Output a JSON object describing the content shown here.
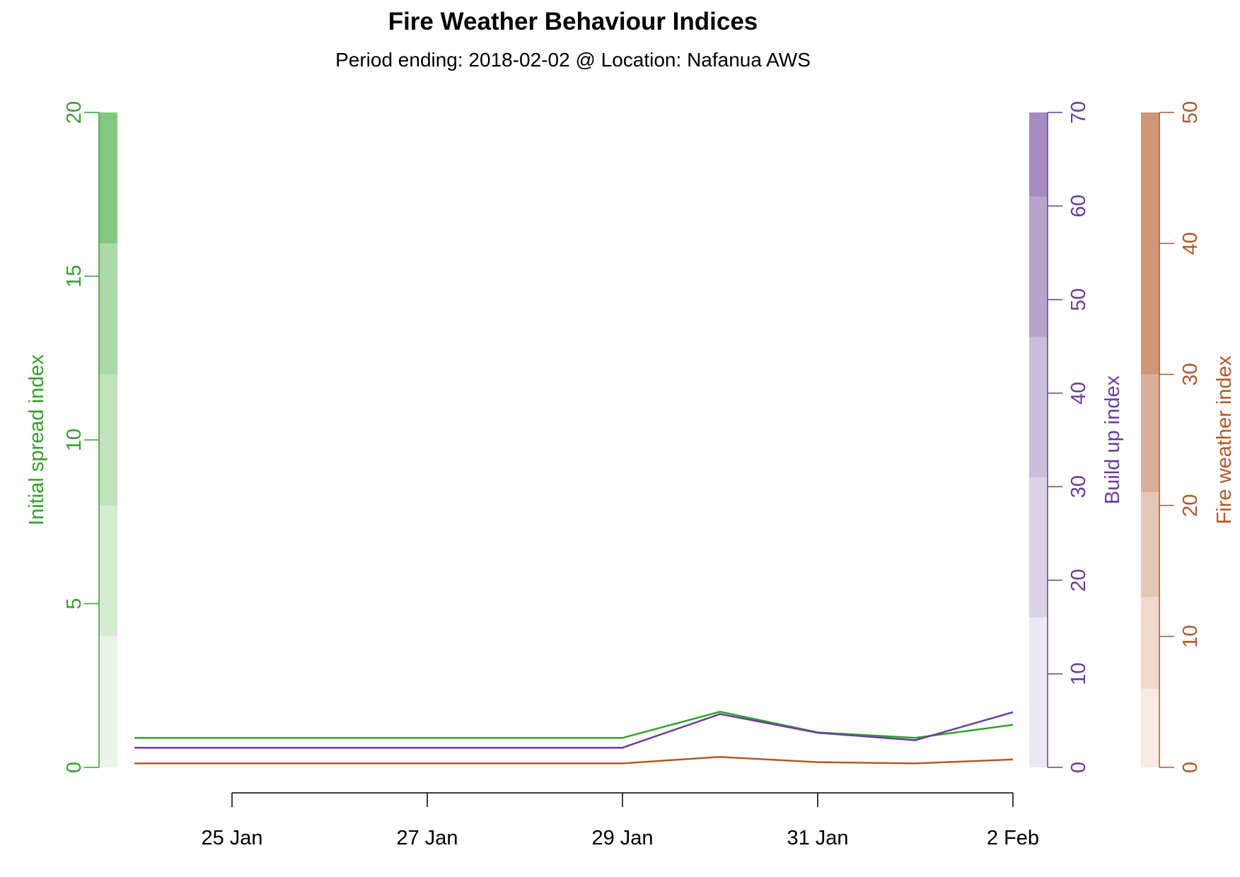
{
  "chart_data": {
    "type": "line",
    "title": "Fire Weather Behaviour Indices",
    "subtitle": "Period ending: 2018-02-02 @ Location: Nafanua AWS",
    "x": [
      "2018-01-24",
      "2018-01-25",
      "2018-01-26",
      "2018-01-27",
      "2018-01-28",
      "2018-01-29",
      "2018-01-30",
      "2018-01-31",
      "2018-02-01",
      "2018-02-02"
    ],
    "x_tick_labels": [
      "25 Jan",
      "27 Jan",
      "29 Jan",
      "31 Jan",
      "2 Feb"
    ],
    "x_tick_dates": [
      "2018-01-25",
      "2018-01-27",
      "2018-01-29",
      "2018-01-31",
      "2018-02-02"
    ],
    "grid": false,
    "series": [
      {
        "name": "Initial spread index",
        "axis": "left",
        "color": "#33a02c",
        "values": [
          0.9,
          0.9,
          0.9,
          0.9,
          0.9,
          0.9,
          1.7,
          1.07,
          0.9,
          1.3
        ]
      },
      {
        "name": "Build up index",
        "axis": "right1",
        "color": "#6a3d9a",
        "values": [
          2.1,
          2.1,
          2.1,
          2.1,
          2.1,
          2.1,
          5.7,
          3.7,
          2.9,
          5.9
        ]
      },
      {
        "name": "Fire weather index",
        "axis": "right2",
        "color": "#b15928",
        "values": [
          0.3,
          0.3,
          0.3,
          0.3,
          0.3,
          0.3,
          0.8,
          0.4,
          0.3,
          0.6
        ]
      }
    ],
    "axes": [
      {
        "id": "left",
        "label": "Initial spread index",
        "color": "#33a02c",
        "ylim": [
          0,
          20
        ],
        "ticks": [
          0,
          5,
          10,
          15,
          20
        ],
        "bands": [
          {
            "from": 0,
            "to": 4,
            "color": "#eaf5e9"
          },
          {
            "from": 4,
            "to": 8,
            "color": "#d5ecd3"
          },
          {
            "from": 8,
            "to": 12,
            "color": "#c0e2bd"
          },
          {
            "from": 12,
            "to": 16,
            "color": "#abd9a7"
          },
          {
            "from": 16,
            "to": 20,
            "color": "#84c77e"
          }
        ]
      },
      {
        "id": "right1",
        "label": "Build up index",
        "color": "#6a3d9a",
        "ylim": [
          0,
          70
        ],
        "ticks": [
          0,
          10,
          20,
          30,
          40,
          50,
          60,
          70
        ],
        "bands": [
          {
            "from": 0,
            "to": 16,
            "color": "#ede9f3"
          },
          {
            "from": 16,
            "to": 31,
            "color": "#dcd3e7"
          },
          {
            "from": 31,
            "to": 46,
            "color": "#cabeda"
          },
          {
            "from": 46,
            "to": 61,
            "color": "#b7a3d0"
          },
          {
            "from": 61,
            "to": 70,
            "color": "#a68bc2"
          }
        ]
      },
      {
        "id": "right2",
        "label": "Fire weather index",
        "color": "#b15928",
        "ylim": [
          0,
          50
        ],
        "ticks": [
          0,
          10,
          20,
          30,
          40,
          50
        ],
        "bands": [
          {
            "from": 0,
            "to": 6,
            "color": "#f6ebe5"
          },
          {
            "from": 6,
            "to": 13,
            "color": "#eedacf"
          },
          {
            "from": 13,
            "to": 21,
            "color": "#e4c7b7"
          },
          {
            "from": 21,
            "to": 30,
            "color": "#daaf98"
          },
          {
            "from": 30,
            "to": 50,
            "color": "#cf9677"
          }
        ]
      }
    ]
  }
}
